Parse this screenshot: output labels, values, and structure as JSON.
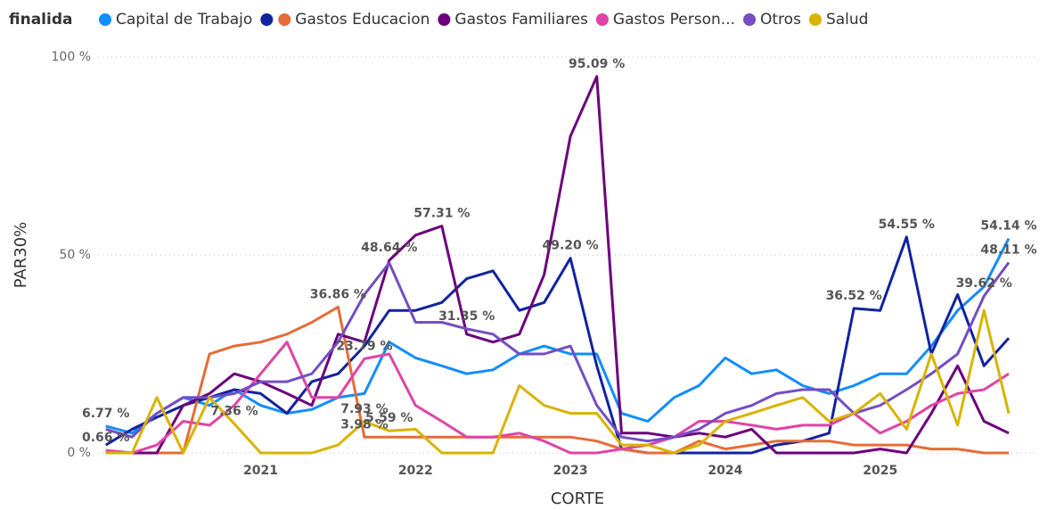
{
  "chart_data": {
    "type": "line",
    "legend_title": "finalida",
    "x_label": "CORTE",
    "y_label": "PAR30%",
    "x": [
      2020.0,
      2020.17,
      2020.33,
      2020.5,
      2020.67,
      2020.83,
      2021.0,
      2021.17,
      2021.33,
      2021.5,
      2021.67,
      2021.83,
      2022.0,
      2022.17,
      2022.33,
      2022.5,
      2022.67,
      2022.83,
      2023.0,
      2023.17,
      2023.33,
      2023.5,
      2023.67,
      2023.83,
      2024.0,
      2024.17,
      2024.33,
      2024.5,
      2024.67,
      2024.83,
      2025.0,
      2025.17,
      2025.33,
      2025.5,
      2025.67,
      2025.83
    ],
    "xlim": [
      2019.95,
      2026.02
    ],
    "xticks": [
      2021,
      2022,
      2023,
      2024,
      2025
    ],
    "ylim": [
      0,
      100
    ],
    "yticks": [
      {
        "value": 0,
        "label": "0 %"
      },
      {
        "value": 50,
        "label": "50 %"
      },
      {
        "value": 100,
        "label": "100 %"
      }
    ],
    "grid": true,
    "legend": "top-left",
    "series": [
      {
        "name": "Capital de Trabajo",
        "color": "#118dff",
        "values": [
          6.77,
          5,
          10,
          14,
          12,
          16,
          12,
          10,
          11,
          14,
          15,
          28,
          24,
          22,
          20,
          21,
          25,
          27,
          25,
          25,
          10,
          8,
          14,
          17,
          24,
          20,
          21,
          17,
          15,
          17,
          20,
          20,
          27,
          36,
          42,
          54.14
        ],
        "value_labels": [
          "6.77 %",
          null,
          null,
          null,
          null,
          null,
          null,
          null,
          null,
          null,
          null,
          null,
          null,
          null,
          null,
          null,
          null,
          null,
          null,
          null,
          null,
          null,
          null,
          null,
          null,
          null,
          null,
          null,
          null,
          null,
          null,
          null,
          null,
          null,
          null,
          "54.14 %"
        ]
      },
      {
        "name": "",
        "color": "#12239e",
        "values": [
          2,
          6,
          9,
          12,
          14,
          16,
          15,
          10,
          18,
          20,
          27,
          36,
          36,
          38,
          44,
          46,
          36,
          38,
          49.2,
          22,
          1,
          0,
          0,
          0,
          0,
          0,
          2,
          3,
          5,
          36.52,
          36,
          54.55,
          25,
          40,
          22,
          29
        ],
        "value_labels": [
          null,
          null,
          null,
          null,
          null,
          null,
          null,
          null,
          null,
          null,
          null,
          null,
          null,
          null,
          null,
          null,
          null,
          null,
          "49.20 %",
          null,
          null,
          null,
          null,
          null,
          null,
          null,
          null,
          null,
          null,
          "36.52 %",
          null,
          "54.55 %",
          null,
          null,
          null,
          null
        ]
      },
      {
        "name": "Gastos Educacion",
        "color": "#e66c37",
        "values": [
          0,
          0,
          0,
          0,
          25,
          27,
          28,
          30,
          33,
          36.86,
          3.98,
          4,
          4,
          4,
          4,
          4,
          4,
          4,
          4,
          3,
          1,
          0,
          0,
          3,
          1,
          2,
          3,
          3,
          3,
          2,
          2,
          2,
          1,
          1,
          0,
          0
        ],
        "value_labels": [
          null,
          null,
          null,
          null,
          null,
          null,
          null,
          null,
          null,
          "36.86 %",
          "3.98 %",
          null,
          null,
          null,
          null,
          null,
          null,
          null,
          null,
          null,
          null,
          null,
          null,
          null,
          null,
          null,
          null,
          null,
          null,
          null,
          null,
          null,
          null,
          null,
          null,
          null
        ]
      },
      {
        "name": "Gastos Familiares",
        "color": "#6b007b",
        "values": [
          0,
          0,
          0,
          12,
          15,
          20,
          18,
          15,
          12,
          30,
          28,
          48.64,
          55,
          57.31,
          30,
          28,
          30,
          45,
          80,
          95.09,
          5,
          5,
          4,
          5,
          4,
          6,
          0,
          0,
          0,
          0,
          1,
          0,
          10,
          22,
          8,
          5
        ],
        "value_labels": [
          null,
          null,
          null,
          null,
          null,
          null,
          null,
          null,
          null,
          null,
          null,
          "48.64 %",
          null,
          "57.31 %",
          null,
          null,
          null,
          null,
          null,
          "95.09 %",
          null,
          null,
          null,
          null,
          null,
          null,
          null,
          null,
          null,
          null,
          null,
          null,
          null,
          null,
          null,
          null
        ]
      },
      {
        "name": "Gastos Person...",
        "color": "#e044a7",
        "values": [
          0.66,
          0,
          2,
          8,
          7,
          12,
          20,
          28,
          14,
          14,
          23.79,
          25,
          12,
          8,
          4,
          4,
          5,
          3,
          0,
          0,
          1,
          2,
          4,
          8,
          8,
          7,
          6,
          7,
          7,
          10,
          5,
          8,
          12,
          15,
          16,
          20
        ],
        "value_labels": [
          "0.66 %",
          null,
          null,
          null,
          null,
          null,
          null,
          null,
          null,
          null,
          "23.79 %",
          null,
          null,
          null,
          null,
          null,
          null,
          null,
          null,
          null,
          null,
          null,
          null,
          null,
          null,
          null,
          null,
          null,
          null,
          null,
          null,
          null,
          null,
          null,
          null,
          null
        ]
      },
      {
        "name": "Otros",
        "color": "#744ec2",
        "values": [
          6,
          4,
          10,
          14,
          14,
          15,
          18,
          18,
          20,
          28,
          40,
          48,
          33,
          33,
          31.35,
          30,
          25,
          25,
          27,
          12,
          4,
          3,
          4,
          6,
          10,
          12,
          15,
          16,
          16,
          10,
          12,
          16,
          20,
          25,
          39.62,
          48.11
        ],
        "value_labels": [
          null,
          null,
          null,
          null,
          null,
          null,
          null,
          null,
          null,
          null,
          null,
          null,
          null,
          null,
          "31.35 %",
          null,
          null,
          null,
          null,
          null,
          null,
          null,
          null,
          null,
          null,
          null,
          null,
          null,
          null,
          null,
          null,
          null,
          null,
          null,
          "39.62 %",
          "48.11 %"
        ]
      },
      {
        "name": "Salud",
        "color": "#d9b300",
        "values": [
          0,
          0,
          14,
          0,
          14,
          7.36,
          0,
          0,
          0,
          2,
          7.93,
          5.59,
          6,
          0,
          0,
          0,
          17,
          12,
          10,
          10,
          2,
          2,
          0,
          2,
          8,
          10,
          12,
          14,
          8,
          10,
          15,
          6,
          25,
          7,
          36,
          10
        ],
        "value_labels": [
          null,
          null,
          null,
          null,
          null,
          "7.36 %",
          null,
          null,
          null,
          null,
          "7.93 %",
          "5.59 %",
          null,
          null,
          null,
          null,
          null,
          null,
          null,
          null,
          null,
          null,
          null,
          null,
          null,
          null,
          null,
          null,
          null,
          null,
          null,
          null,
          null,
          null,
          null,
          null
        ]
      }
    ]
  }
}
